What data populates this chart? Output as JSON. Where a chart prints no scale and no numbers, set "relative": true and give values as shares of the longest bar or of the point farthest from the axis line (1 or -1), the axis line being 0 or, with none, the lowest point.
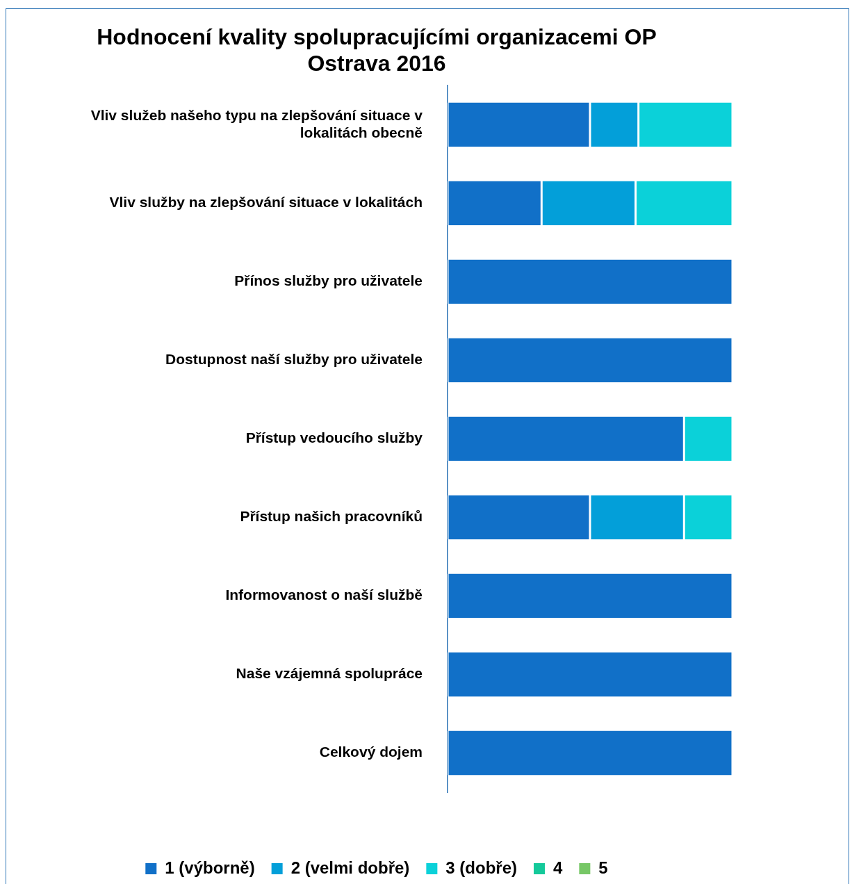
{
  "chart_data": {
    "type": "bar",
    "title": "Hodnocení kvality spolupracujícími organizacemi OP Ostrava 2016",
    "orientation": "horizontal",
    "stacked": true,
    "relative": true,
    "legend": "bottom",
    "categories": [
      "Vliv služeb našeho typu na zlepšování situace v lokalitách obecně",
      "Vliv služby na zlepšování situace v lokalitách",
      "Přínos služby pro uživatele",
      "Dostupnost naší služby pro uživatele",
      "Přístup vedoucího služby",
      "Přístup našich pracovníků",
      "Informovanost o naší službě",
      "Naše vzájemná spolupráce",
      "Celkový dojem"
    ],
    "series": [
      {
        "name": "1 (výborně)",
        "color": "#1170c8",
        "values": [
          0.5,
          0.33,
          1,
          1,
          0.83,
          0.5,
          1,
          1,
          1
        ]
      },
      {
        "name": "2 (velmi dobře)",
        "color": "#039fd9",
        "values": [
          0.17,
          0.33,
          0,
          0,
          0,
          0.33,
          0,
          0,
          0
        ]
      },
      {
        "name": "3 (dobře)",
        "color": "#0bd1d9",
        "values": [
          0.33,
          0.34,
          0,
          0,
          0.17,
          0.17,
          0,
          0,
          0
        ]
      },
      {
        "name": "4",
        "color": "#14c99a",
        "values": [
          0,
          0,
          0,
          0,
          0,
          0,
          0,
          0,
          0
        ]
      },
      {
        "name": "5",
        "color": "#77c766",
        "values": [
          0,
          0,
          0,
          0,
          0,
          0,
          0,
          0,
          0
        ]
      }
    ]
  }
}
